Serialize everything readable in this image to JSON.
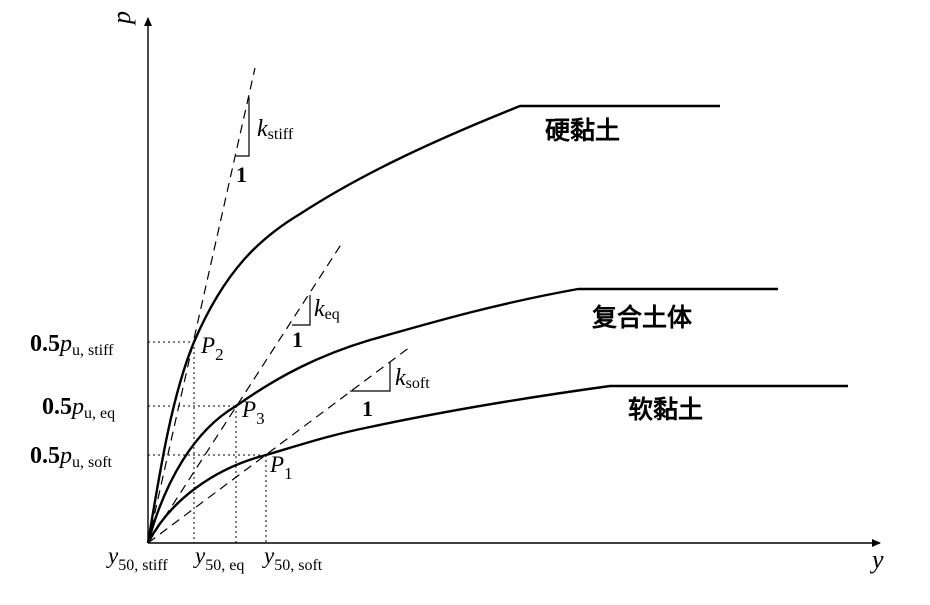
{
  "axes": {
    "x_label": "y",
    "y_label": "p"
  },
  "curves": {
    "stiff_clay": "硬黏土",
    "composite": "复合土体",
    "soft_clay": "软黏土"
  },
  "points": {
    "p2": {
      "main": "P",
      "sub": "2"
    },
    "p3": {
      "main": "P",
      "sub": "3"
    },
    "p1": {
      "main": "P",
      "sub": "1"
    }
  },
  "slopes": {
    "stiff": {
      "k": "k",
      "sub": "stiff",
      "one": "1"
    },
    "eq": {
      "k": "k",
      "sub": "eq",
      "one": "1"
    },
    "soft": {
      "k": "k",
      "sub": "soft",
      "one": "1"
    }
  },
  "y_ticks": {
    "stiff": {
      "coef": "0.5",
      "p": "p",
      "sub": "u, stiff"
    },
    "eq": {
      "coef": "0.5",
      "p": "p",
      "sub": "u, eq"
    },
    "soft": {
      "coef": "0.5",
      "p": "p",
      "sub": "u, soft"
    }
  },
  "x_ticks": {
    "stiff": {
      "y": "y",
      "sub": "50, stiff"
    },
    "eq": {
      "y": "y",
      "sub": "50, eq"
    },
    "soft": {
      "y": "y",
      "sub": "50, soft"
    }
  }
}
